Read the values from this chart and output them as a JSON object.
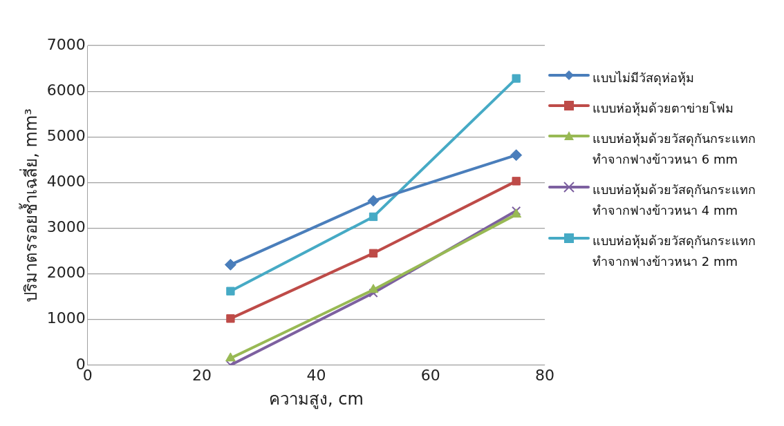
{
  "chart_data": {
    "type": "line",
    "xlabel": "ความสูง, cm",
    "ylabel": "ปริมาตรรอยช้ำเฉลี่ย, mm³",
    "x": [
      25,
      50,
      75
    ],
    "series": [
      {
        "name": "แบบไม่มีวัสดุห่อหุ้ม",
        "color": "#4a7ebb",
        "marker": "diamond",
        "values": [
          2200,
          3600,
          4600
        ]
      },
      {
        "name": "แบบห่อหุ้มด้วยตาข่ายโฟม",
        "color": "#be4b48",
        "marker": "square",
        "values": [
          1020,
          2450,
          4030
        ]
      },
      {
        "name": "แบบห่อหุ้มด้วยวัสดุกันกระแทก ทำจากฟางข้าวหนา 6 mm",
        "color": "#98b954",
        "marker": "triangle",
        "values": [
          150,
          1650,
          3300
        ]
      },
      {
        "name": "แบบห่อหุ้มด้วยวัสดุกันกระแทก ทำจากฟางข้าวหนา 4 mm",
        "color": "#7d60a0",
        "marker": "cross",
        "values": [
          0,
          1580,
          3380
        ]
      },
      {
        "name": "แบบห่อหุ้มด้วยวัสดุกันกระแทก ทำจากฟางข้าวหนา 2 mm",
        "color": "#46aac5",
        "marker": "square",
        "values": [
          1620,
          3250,
          6280
        ]
      }
    ],
    "xlim": [
      0,
      80
    ],
    "xticks": [
      0,
      20,
      40,
      60,
      80
    ],
    "ylim": [
      0,
      7000
    ],
    "yticks": [
      0,
      1000,
      2000,
      3000,
      4000,
      5000,
      6000,
      7000
    ],
    "grid": "y",
    "legend": "right",
    "line_style": "solid"
  }
}
